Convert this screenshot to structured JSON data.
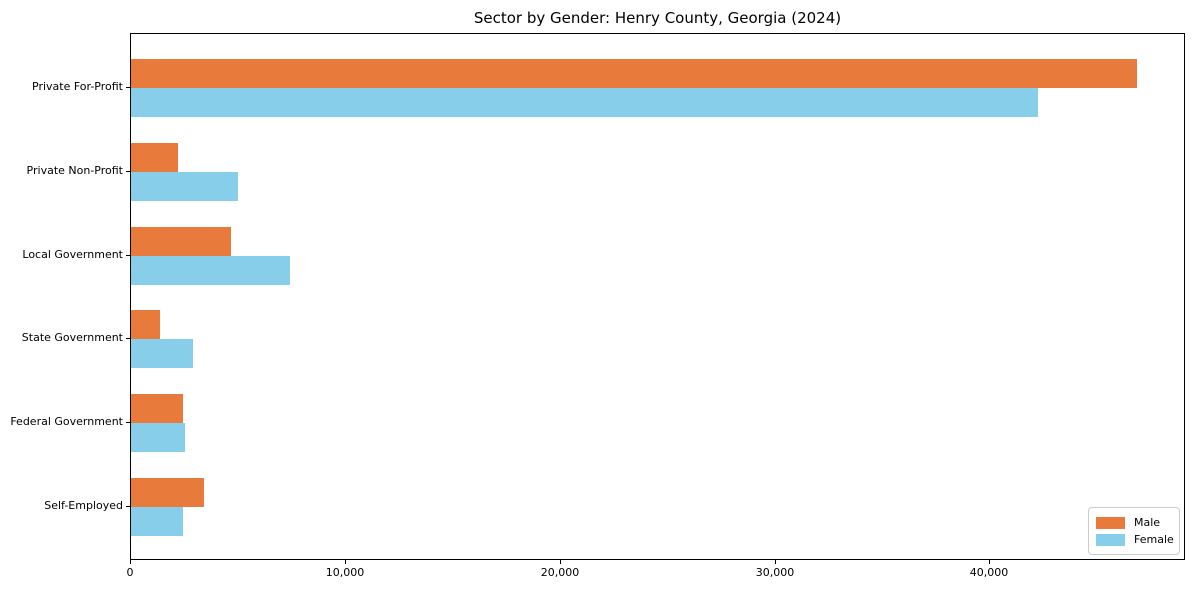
{
  "chart_data": {
    "type": "bar",
    "orientation": "horizontal",
    "title": "Sector by Gender: Henry County, Georgia (2024)",
    "categories": [
      "Private For-Profit",
      "Private Non-Profit",
      "Local Government",
      "State Government",
      "Federal Government",
      "Self-Employed"
    ],
    "series": [
      {
        "name": "Male",
        "color": "#E87A3C",
        "values": [
          46800,
          2200,
          4650,
          1350,
          2400,
          3400
        ]
      },
      {
        "name": "Female",
        "color": "#87CEEB",
        "values": [
          42200,
          5000,
          7400,
          2900,
          2500,
          2400
        ]
      }
    ],
    "xlabel": "",
    "ylabel": "",
    "xlim": [
      0,
      49100
    ],
    "xticks": [
      0,
      10000,
      20000,
      30000,
      40000
    ],
    "xtick_labels": [
      "0",
      "10,000",
      "20,000",
      "30,000",
      "40,000"
    ],
    "grid": false,
    "legend_position": "lower right",
    "legend_entries": [
      "Male",
      "Female"
    ]
  },
  "colors": {
    "background": "#ffffff",
    "spine": "#000000",
    "text": "#000000",
    "legend_border": "#cccccc"
  }
}
